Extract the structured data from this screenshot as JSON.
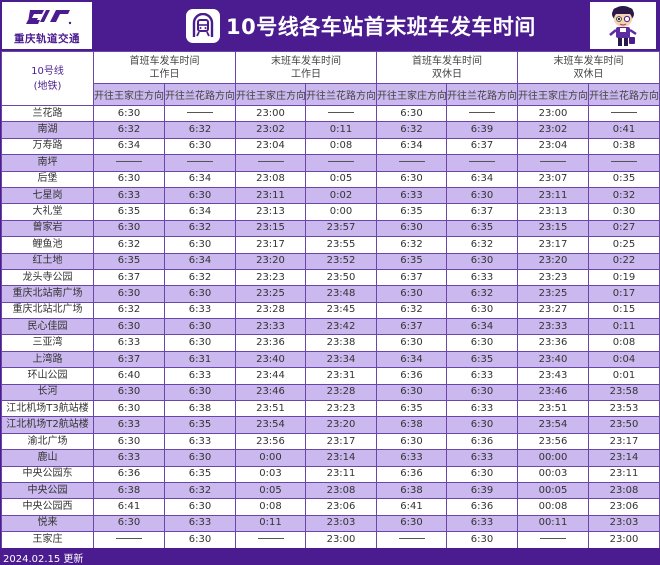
{
  "header": {
    "logo_text": "重庆轨道交通",
    "logo_icon": "crt-logo-icon",
    "title": "10号线各车站首末班车发车时间",
    "title_icon": "metro-train-icon",
    "mascot_icon": "mascot-character-icon"
  },
  "colors": {
    "brand_purple": "#4b1c8f",
    "row_highlight": "#cbb8ee",
    "border": "#6a46a8"
  },
  "table": {
    "line_label": "10号线",
    "line_sub": "(地铁)",
    "groups": [
      {
        "line1": "首班车发车时间",
        "line2": "工作日"
      },
      {
        "line1": "末班车发车时间",
        "line2": "工作日"
      },
      {
        "line1": "首班车发车时间",
        "line2": "双休日"
      },
      {
        "line1": "末班车发车时间",
        "line2": "双休日"
      }
    ],
    "directions": [
      "开往王家庄方向",
      "开往兰花路方向",
      "开往王家庄方向",
      "开往兰花路方向",
      "开往王家庄方向",
      "开往兰花路方向",
      "开往王家庄方向",
      "开往兰花路方向"
    ],
    "dash_marker": "——",
    "rows": [
      {
        "station": "兰花路",
        "v": [
          "6:30",
          "——",
          "23:00",
          "——",
          "6:30",
          "——",
          "23:00",
          "——"
        ]
      },
      {
        "station": "南湖",
        "v": [
          "6:32",
          "6:32",
          "23:02",
          "0:11",
          "6:32",
          "6:39",
          "23:02",
          "0:41"
        ]
      },
      {
        "station": "万寿路",
        "v": [
          "6:34",
          "6:30",
          "23:04",
          "0:08",
          "6:34",
          "6:37",
          "23:04",
          "0:38"
        ]
      },
      {
        "station": "南坪",
        "v": [
          "——",
          "——",
          "——",
          "——",
          "——",
          "——",
          "——",
          "——"
        ]
      },
      {
        "station": "后堡",
        "v": [
          "6:30",
          "6:34",
          "23:08",
          "0:05",
          "6:30",
          "6:34",
          "23:07",
          "0:35"
        ]
      },
      {
        "station": "七星岗",
        "v": [
          "6:33",
          "6:30",
          "23:11",
          "0:02",
          "6:33",
          "6:30",
          "23:11",
          "0:32"
        ]
      },
      {
        "station": "大礼堂",
        "v": [
          "6:35",
          "6:34",
          "23:13",
          "0:00",
          "6:35",
          "6:37",
          "23:13",
          "0:30"
        ]
      },
      {
        "station": "曾家岩",
        "v": [
          "6:30",
          "6:32",
          "23:15",
          "23:57",
          "6:30",
          "6:35",
          "23:15",
          "0:27"
        ]
      },
      {
        "station": "鲤鱼池",
        "v": [
          "6:32",
          "6:30",
          "23:17",
          "23:55",
          "6:32",
          "6:32",
          "23:17",
          "0:25"
        ]
      },
      {
        "station": "红土地",
        "v": [
          "6:35",
          "6:34",
          "23:20",
          "23:52",
          "6:35",
          "6:30",
          "23:20",
          "0:22"
        ]
      },
      {
        "station": "龙头寺公园",
        "v": [
          "6:37",
          "6:32",
          "23:23",
          "23:50",
          "6:37",
          "6:33",
          "23:23",
          "0:19"
        ]
      },
      {
        "station": "重庆北站南广场",
        "v": [
          "6:30",
          "6:30",
          "23:25",
          "23:48",
          "6:30",
          "6:32",
          "23:25",
          "0:17"
        ]
      },
      {
        "station": "重庆北站北广场",
        "v": [
          "6:32",
          "6:33",
          "23:28",
          "23:45",
          "6:32",
          "6:30",
          "23:27",
          "0:15"
        ]
      },
      {
        "station": "民心佳园",
        "v": [
          "6:30",
          "6:30",
          "23:33",
          "23:42",
          "6:37",
          "6:34",
          "23:33",
          "0:11"
        ]
      },
      {
        "station": "三亚湾",
        "v": [
          "6:33",
          "6:30",
          "23:36",
          "23:38",
          "6:30",
          "6:30",
          "23:36",
          "0:08"
        ]
      },
      {
        "station": "上湾路",
        "v": [
          "6:37",
          "6:31",
          "23:40",
          "23:34",
          "6:34",
          "6:35",
          "23:40",
          "0:04"
        ]
      },
      {
        "station": "环山公园",
        "v": [
          "6:40",
          "6:33",
          "23:44",
          "23:31",
          "6:36",
          "6:33",
          "23:43",
          "0:01"
        ]
      },
      {
        "station": "长河",
        "v": [
          "6:30",
          "6:30",
          "23:46",
          "23:28",
          "6:30",
          "6:30",
          "23:46",
          "23:58"
        ]
      },
      {
        "station": "江北机场T3航站楼",
        "v": [
          "6:30",
          "6:38",
          "23:51",
          "23:23",
          "6:35",
          "6:33",
          "23:51",
          "23:53"
        ]
      },
      {
        "station": "江北机场T2航站楼",
        "v": [
          "6:33",
          "6:35",
          "23:54",
          "23:20",
          "6:38",
          "6:30",
          "23:54",
          "23:50"
        ]
      },
      {
        "station": "渝北广场",
        "v": [
          "6:30",
          "6:33",
          "23:56",
          "23:17",
          "6:30",
          "6:36",
          "23:56",
          "23:17"
        ]
      },
      {
        "station": "鹿山",
        "v": [
          "6:33",
          "6:30",
          "0:00",
          "23:14",
          "6:33",
          "6:33",
          "00:00",
          "23:14"
        ]
      },
      {
        "station": "中央公园东",
        "v": [
          "6:36",
          "6:35",
          "0:03",
          "23:11",
          "6:36",
          "6:30",
          "00:03",
          "23:11"
        ]
      },
      {
        "station": "中央公园",
        "v": [
          "6:38",
          "6:32",
          "0:05",
          "23:08",
          "6:38",
          "6:39",
          "00:05",
          "23:08"
        ]
      },
      {
        "station": "中央公园西",
        "v": [
          "6:41",
          "6:30",
          "0:08",
          "23:06",
          "6:41",
          "6:36",
          "00:08",
          "23:06"
        ]
      },
      {
        "station": "悦来",
        "v": [
          "6:30",
          "6:33",
          "0:11",
          "23:03",
          "6:30",
          "6:33",
          "00:11",
          "23:03"
        ]
      },
      {
        "station": "王家庄",
        "v": [
          "——",
          "6:30",
          "——",
          "23:00",
          "——",
          "6:30",
          "——",
          "23:00"
        ]
      }
    ]
  },
  "footer": {
    "update_text": "2024.02.15 更新"
  }
}
